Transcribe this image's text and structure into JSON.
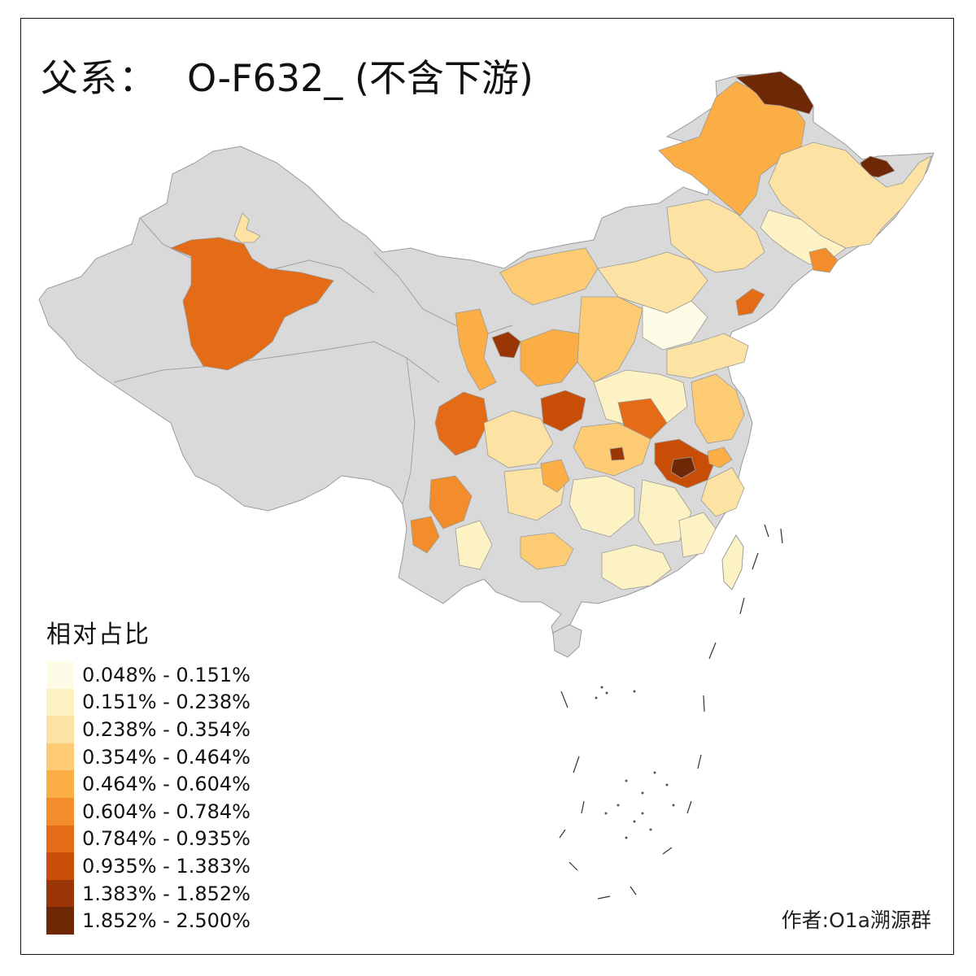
{
  "title": {
    "prefix": "父系：",
    "code": "O-F632_ (不含下游)"
  },
  "legend": {
    "title": "相对占比",
    "items": [
      {
        "label": "0.048% - 0.151%",
        "color": "#fefce6"
      },
      {
        "label": "0.151% - 0.238%",
        "color": "#fdf2c4"
      },
      {
        "label": "0.238% - 0.354%",
        "color": "#fde3a3"
      },
      {
        "label": "0.354% - 0.464%",
        "color": "#fecb75"
      },
      {
        "label": "0.464% - 0.604%",
        "color": "#fbae45"
      },
      {
        "label": "0.604% - 0.784%",
        "color": "#f38d2c"
      },
      {
        "label": "0.784% - 0.935%",
        "color": "#e46c16"
      },
      {
        "label": "0.935% - 1.383%",
        "color": "#c84e08"
      },
      {
        "label": "1.383% - 1.852%",
        "color": "#9a3506"
      },
      {
        "label": "1.852% - 2.500%",
        "color": "#6e2806"
      }
    ]
  },
  "no_data_color": "#d9d9d9",
  "author": "作者:O1a溯源群"
}
